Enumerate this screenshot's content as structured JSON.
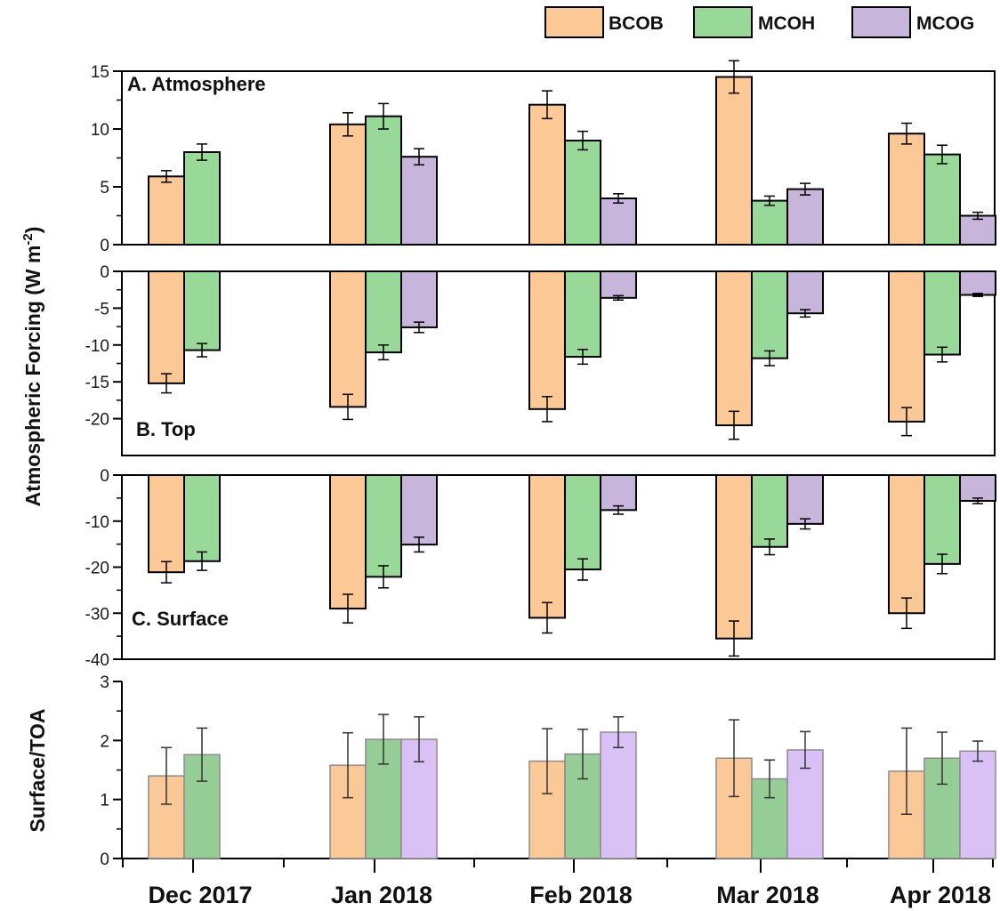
{
  "legend": [
    {
      "name": "BCOB",
      "color": "#fcc895"
    },
    {
      "name": "MCOH",
      "color": "#98d99a"
    },
    {
      "name": "MCOG",
      "color": "#c7b5db"
    }
  ],
  "ylabel_main": "Atmospheric Forcing (W m",
  "ylabel_main_sup": "-2",
  "ylabel_main_tail": ")",
  "ylabel_ratio": "Surface/TOA",
  "chart_data": [
    {
      "type": "bar",
      "title": "A. Atmosphere",
      "categories": [
        "Dec 2017",
        "Jan 2018",
        "Feb 2018",
        "Mar 2018",
        "Apr 2018"
      ],
      "ylim": [
        0,
        15
      ],
      "yticks": [
        0,
        5,
        10,
        15
      ],
      "series": [
        {
          "name": "BCOB",
          "values": [
            5.9,
            10.4,
            12.1,
            14.5,
            9.6
          ],
          "errors": [
            0.5,
            1.0,
            1.2,
            1.4,
            0.9
          ]
        },
        {
          "name": "MCOH",
          "values": [
            8.0,
            11.1,
            9.0,
            3.8,
            7.8
          ],
          "errors": [
            0.7,
            1.1,
            0.8,
            0.4,
            0.8
          ]
        },
        {
          "name": "MCOG",
          "values": [
            null,
            7.6,
            4.0,
            4.8,
            2.5
          ],
          "errors": [
            null,
            0.7,
            0.4,
            0.5,
            0.3
          ]
        }
      ]
    },
    {
      "type": "bar",
      "title": "B. Top",
      "categories": [
        "Dec 2017",
        "Jan 2018",
        "Feb 2018",
        "Mar 2018",
        "Apr 2018"
      ],
      "ylim": [
        -25,
        0
      ],
      "yticks": [
        -20,
        -15,
        -10,
        -5,
        0
      ],
      "series": [
        {
          "name": "BCOB",
          "values": [
            -15.2,
            -18.4,
            -18.7,
            -20.9,
            -20.4
          ],
          "errors": [
            1.3,
            1.7,
            1.7,
            1.9,
            1.9
          ]
        },
        {
          "name": "MCOH",
          "values": [
            -10.7,
            -11.0,
            -11.6,
            -11.8,
            -11.3
          ],
          "errors": [
            0.9,
            1.0,
            1.0,
            1.0,
            1.0
          ]
        },
        {
          "name": "MCOG",
          "values": [
            null,
            -7.6,
            -3.6,
            -5.7,
            -3.2
          ],
          "errors": [
            null,
            0.7,
            0.3,
            0.5,
            0.2
          ]
        }
      ]
    },
    {
      "type": "bar",
      "title": "C. Surface",
      "categories": [
        "Dec 2017",
        "Jan 2018",
        "Feb 2018",
        "Mar 2018",
        "Apr 2018"
      ],
      "ylim": [
        -40,
        0
      ],
      "yticks": [
        -40,
        -30,
        -20,
        -10,
        0
      ],
      "series": [
        {
          "name": "BCOB",
          "values": [
            -21.1,
            -29.0,
            -31.0,
            -35.5,
            -30.0
          ],
          "errors": [
            2.3,
            3.1,
            3.3,
            3.8,
            3.3
          ]
        },
        {
          "name": "MCOH",
          "values": [
            -18.7,
            -22.1,
            -20.5,
            -15.6,
            -19.3
          ],
          "errors": [
            2.0,
            2.4,
            2.3,
            1.7,
            2.1
          ]
        },
        {
          "name": "MCOG",
          "values": [
            null,
            -15.1,
            -7.6,
            -10.6,
            -5.6
          ],
          "errors": [
            null,
            1.6,
            0.9,
            1.1,
            0.6
          ]
        }
      ]
    },
    {
      "type": "bar",
      "title": "",
      "ylabel": "Surface/TOA",
      "categories": [
        "Dec 2017",
        "Jan 2018",
        "Feb 2018",
        "Mar 2018",
        "Apr 2018"
      ],
      "ylim": [
        0,
        3
      ],
      "yticks": [
        0,
        1,
        2,
        3
      ],
      "series": [
        {
          "name": "BCOB",
          "values": [
            1.4,
            1.58,
            1.65,
            1.7,
            1.48
          ],
          "errors": [
            0.48,
            0.55,
            0.55,
            0.65,
            0.73
          ]
        },
        {
          "name": "MCOH",
          "values": [
            1.76,
            2.02,
            1.77,
            1.35,
            1.7
          ],
          "errors": [
            0.45,
            0.42,
            0.42,
            0.32,
            0.44
          ]
        },
        {
          "name": "MCOG",
          "values": [
            null,
            2.02,
            2.14,
            1.84,
            1.82
          ],
          "errors": [
            null,
            0.38,
            0.26,
            0.31,
            0.17
          ]
        }
      ]
    }
  ]
}
